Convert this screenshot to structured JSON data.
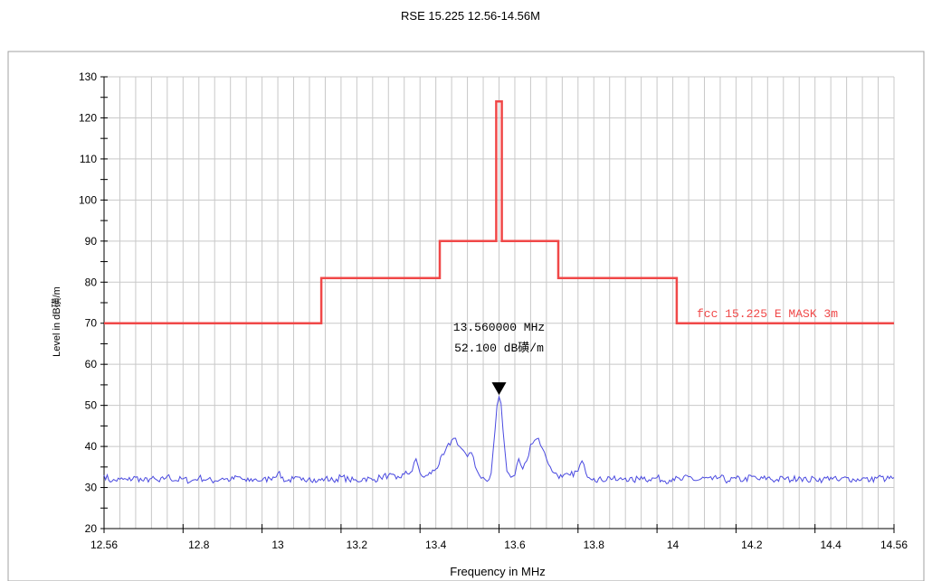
{
  "chart_data": {
    "type": "line",
    "title": "RSE  15.225 12.56-14.56M",
    "xlabel": "Frequency in MHz",
    "ylabel": "Level in dB磺/m",
    "xlim": [
      12.56,
      14.56
    ],
    "ylim": [
      20,
      130
    ],
    "x_ticks": [
      12.56,
      12.8,
      13,
      13.2,
      13.4,
      13.6,
      13.8,
      14,
      14.2,
      14.4,
      14.56
    ],
    "x_tick_labels": [
      "12.56",
      "12.8",
      "13",
      "13.2",
      "13.4",
      "13.6",
      "13.8",
      "14",
      "14.2",
      "14.4",
      "14.56"
    ],
    "y_ticks": [
      20,
      30,
      40,
      50,
      60,
      70,
      80,
      90,
      100,
      110,
      120,
      130
    ],
    "y_tick_labels": [
      "20",
      "30",
      "40",
      "50",
      "60",
      "70",
      "80",
      "90",
      "100",
      "110",
      "120",
      "130"
    ],
    "grid": true,
    "colors": {
      "limit": "#f04848",
      "measurement": "#4a4ae0",
      "grid": "#c8c8c8",
      "frame": "#a0a0a0"
    },
    "series": [
      {
        "name": "fcc 15.225 E MASK 3m",
        "step": true,
        "x": [
          12.56,
          13.11,
          13.11,
          13.41,
          13.41,
          13.553,
          13.553,
          13.567,
          13.567,
          13.71,
          13.71,
          14.01,
          14.01,
          14.56
        ],
        "y": [
          70,
          70,
          81,
          81,
          90,
          90,
          124,
          124,
          90,
          90,
          81,
          81,
          70,
          70
        ]
      },
      {
        "x": [
          12.56,
          12.58,
          12.6,
          12.62,
          12.64,
          12.66,
          12.68,
          12.7,
          12.72,
          12.74,
          12.76,
          12.78,
          12.8,
          12.82,
          12.84,
          12.86,
          12.88,
          12.9,
          12.92,
          12.94,
          12.96,
          12.98,
          13.0,
          13.02,
          13.04,
          13.06,
          13.08,
          13.1,
          13.12,
          13.14,
          13.16,
          13.18,
          13.2,
          13.22,
          13.24,
          13.26,
          13.28,
          13.3,
          13.32,
          13.34,
          13.35,
          13.36,
          13.37,
          13.38,
          13.4,
          13.42,
          13.44,
          13.45,
          13.46,
          13.47,
          13.48,
          13.49,
          13.5,
          13.51,
          13.52,
          13.53,
          13.54,
          13.55,
          13.555,
          13.56,
          13.565,
          13.57,
          13.58,
          13.59,
          13.6,
          13.61,
          13.62,
          13.63,
          13.64,
          13.65,
          13.66,
          13.67,
          13.68,
          13.69,
          13.7,
          13.72,
          13.74,
          13.76,
          13.77,
          13.78,
          13.8,
          13.82,
          13.84,
          13.86,
          13.88,
          13.9,
          13.92,
          13.94,
          13.96,
          13.98,
          14.0,
          14.02,
          14.04,
          14.06,
          14.08,
          14.1,
          14.12,
          14.14,
          14.16,
          14.18,
          14.2,
          14.22,
          14.24,
          14.26,
          14.28,
          14.3,
          14.32,
          14.34,
          14.36,
          14.38,
          14.4,
          14.42,
          14.44,
          14.46,
          14.48,
          14.5,
          14.52,
          14.54,
          14.56
        ],
        "y": [
          33,
          31.5,
          32,
          31.8,
          32.5,
          31.6,
          32.2,
          31.4,
          32.8,
          31.7,
          32.1,
          31.5,
          32.4,
          31.9,
          31.6,
          32.3,
          31.8,
          32.6,
          31.5,
          32.0,
          31.7,
          32.2,
          33.5,
          31.6,
          32.1,
          31.8,
          32.4,
          31.5,
          32.2,
          31.7,
          32.6,
          31.9,
          31.6,
          32.3,
          31.8,
          32.5,
          33.0,
          32.1,
          33.2,
          34.0,
          37.0,
          33.5,
          32.5,
          33.0,
          34.5,
          38.0,
          41.5,
          42.0,
          40.0,
          39.0,
          37.5,
          38.5,
          35.0,
          33.0,
          32.5,
          31.5,
          33.5,
          44.0,
          50.0,
          52.1,
          50.5,
          44.0,
          34.0,
          32.5,
          33.0,
          37.0,
          34.5,
          36.5,
          40.5,
          41.5,
          42.0,
          39.5,
          37.0,
          35.0,
          33.5,
          32.5,
          33.0,
          34.0,
          36.5,
          33.5,
          32.2,
          31.8,
          32.5,
          31.7,
          32.3,
          31.6,
          32.7,
          31.9,
          32.4,
          31.6,
          32.2,
          31.8,
          32.6,
          31.7,
          32.3,
          31.9,
          32.5,
          31.6,
          32.2,
          31.8,
          32.7,
          31.9,
          32.4,
          31.7,
          32.3,
          31.8,
          32.6,
          31.7,
          32.2,
          31.9,
          32.5,
          31.6,
          32.4,
          31.8,
          32.3,
          31.7,
          32.6,
          32.0,
          32.4
        ]
      }
    ],
    "marker": {
      "x": 13.56,
      "y": 52.1,
      "label_freq": "13.560000 MHz",
      "label_level": "52.100 dB磺/m"
    }
  }
}
